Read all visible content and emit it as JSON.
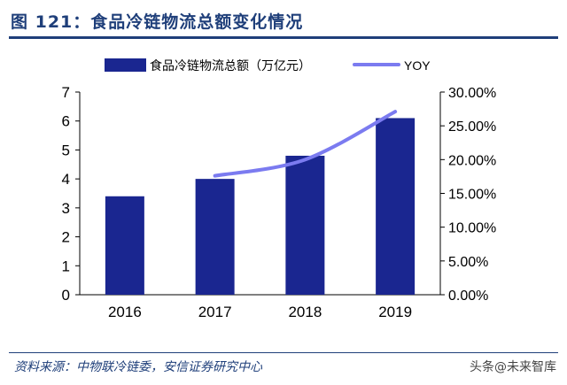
{
  "figure": {
    "title": "图 121：食品冷链物流总额变化情况",
    "source": "资料来源：中物联冷链委，安信证券研究中心",
    "watermark": "头条@未来智库"
  },
  "colors": {
    "bar": "#1a2690",
    "line": "#7b7bf0",
    "title": "#1f3f7a",
    "axis": "#000000"
  },
  "chart_data": {
    "type": "bar",
    "categories": [
      "2016",
      "2017",
      "2018",
      "2019"
    ],
    "series": [
      {
        "name": "食品冷链物流总额（万亿元）",
        "type": "bar",
        "axis": "left",
        "values": [
          3.4,
          4.0,
          4.8,
          6.1
        ]
      },
      {
        "name": "YOY",
        "type": "line",
        "axis": "right",
        "values": [
          null,
          17.6,
          20.0,
          27.1
        ]
      }
    ],
    "ylim": [
      0,
      7
    ],
    "yticks": [
      "0",
      "1",
      "2",
      "3",
      "4",
      "5",
      "6",
      "7"
    ],
    "y2lim": [
      0,
      30
    ],
    "y2ticks": [
      "0.00%",
      "5.00%",
      "10.00%",
      "15.00%",
      "20.00%",
      "25.00%",
      "30.00%"
    ],
    "legend": "top",
    "grid": false
  }
}
